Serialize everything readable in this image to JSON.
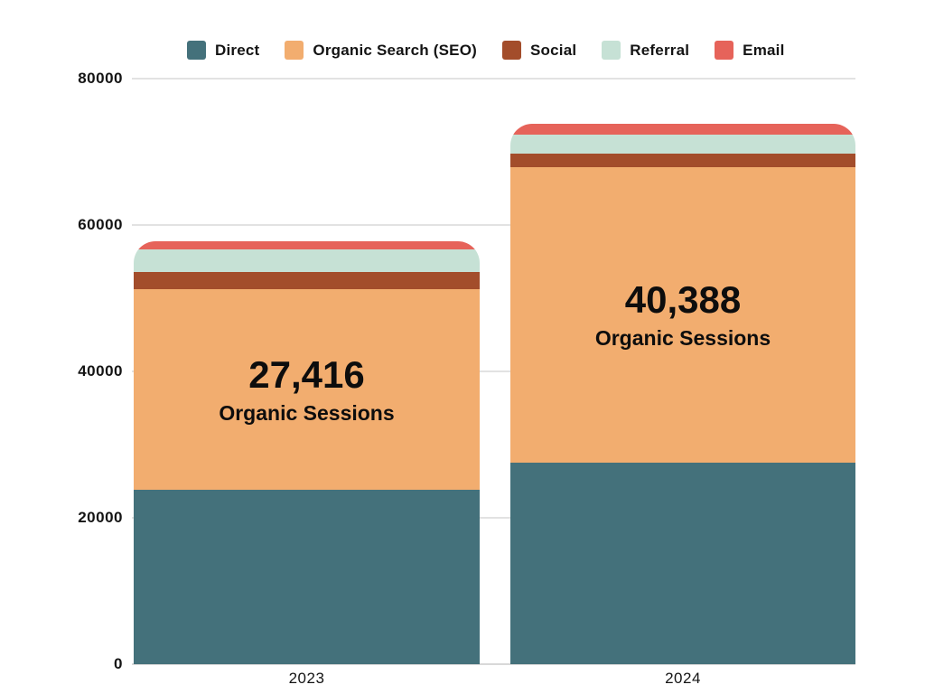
{
  "page": {
    "background": "#ffffff",
    "text_color": "#141414",
    "gridline_color": "#e2e2e2"
  },
  "chart_data": {
    "type": "bar",
    "subtype": "stacked",
    "title": "",
    "xlabel": "",
    "ylabel": "",
    "categories": [
      "2023",
      "2024"
    ],
    "series": [
      {
        "name": "Direct",
        "color": "#44717B",
        "values": [
          23800,
          27500
        ]
      },
      {
        "name": "Organic Search (SEO)",
        "color": "#F2AD6F",
        "values": [
          27416,
          40388
        ]
      },
      {
        "name": "Social",
        "color": "#A34D2B",
        "values": [
          2300,
          1850
        ]
      },
      {
        "name": "Referral",
        "color": "#C6E1D5",
        "values": [
          3100,
          2600
        ]
      },
      {
        "name": "Email",
        "color": "#E6635A",
        "values": [
          1100,
          1480
        ]
      }
    ],
    "totals_estimated": [
      57716,
      73818
    ],
    "bar_annotations": [
      {
        "category": "2023",
        "value_text": "27,416",
        "subtitle": "Organic Sessions"
      },
      {
        "category": "2024",
        "value_text": "40,388",
        "subtitle": "Organic Sessions"
      }
    ],
    "ylim": [
      0,
      80000
    ],
    "yticks": [
      0,
      20000,
      40000,
      60000,
      80000
    ],
    "ytick_labels": [
      "0",
      "20000",
      "40000",
      "60000",
      "80000"
    ],
    "grid": true,
    "legend_position": "top"
  }
}
